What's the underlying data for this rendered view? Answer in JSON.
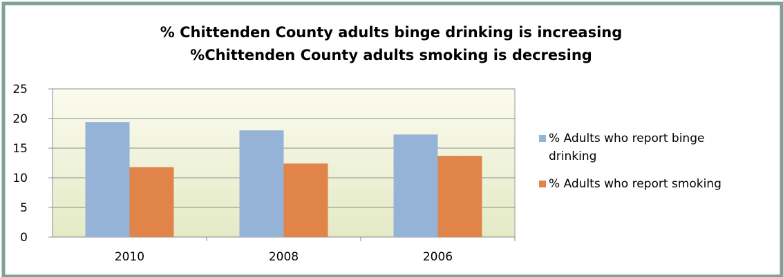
{
  "chart_data": {
    "type": "bar",
    "title": [
      "% Chittenden County adults binge drinking is increasing",
      "%Chittenden County adults smoking is decresing"
    ],
    "categories": [
      "2010",
      "2008",
      "2006"
    ],
    "series": [
      {
        "name": "% Adults who report binge drinking",
        "color": "#95b3d7",
        "values": [
          19.4,
          18.0,
          17.3
        ]
      },
      {
        "name": "% Adults who report smoking",
        "color": "#e0844a",
        "values": [
          11.8,
          12.4,
          13.7
        ]
      }
    ],
    "ylim": [
      0,
      25
    ],
    "yticks": [
      0,
      5,
      10,
      15,
      20,
      25
    ],
    "grid": true,
    "legend": "right"
  }
}
